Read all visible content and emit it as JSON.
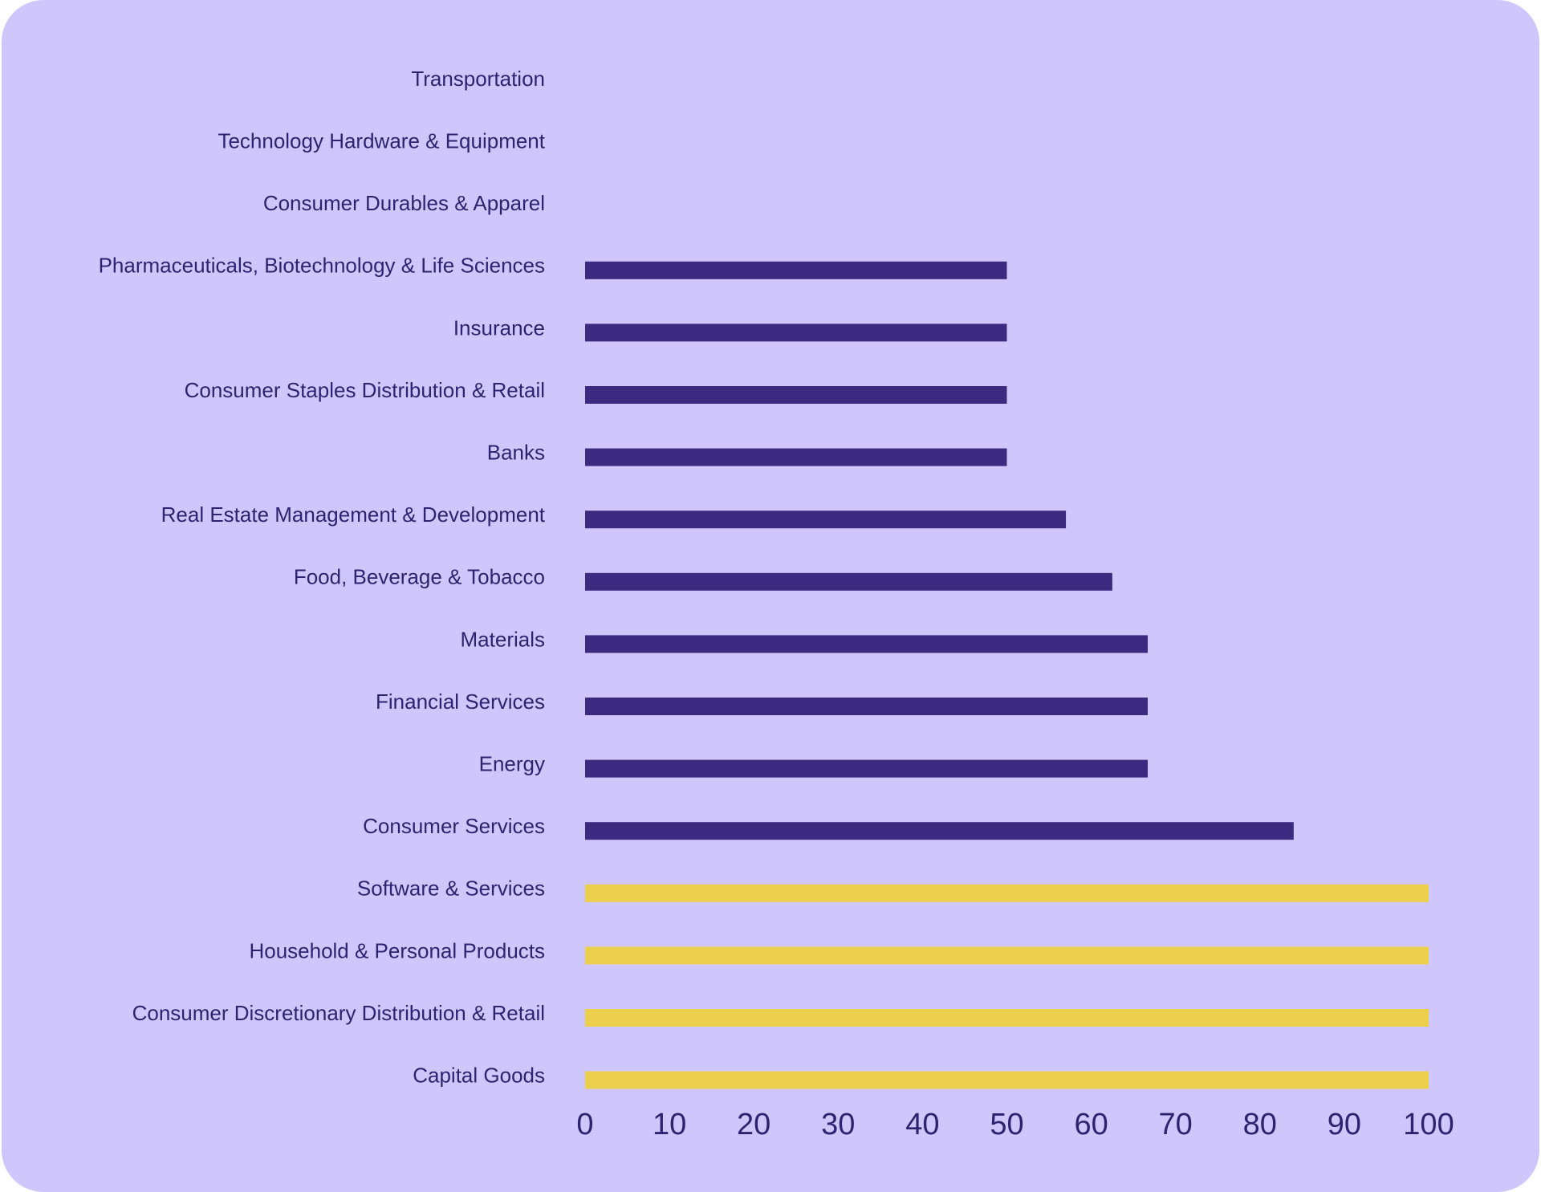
{
  "colors": {
    "background": "#cfc7fc",
    "text": "#2e2370",
    "bar_default": "#3b2a80",
    "bar_highlight": "#ecd04c"
  },
  "chart_data": {
    "type": "bar",
    "orientation": "horizontal",
    "title": "",
    "xlabel": "",
    "ylabel": "",
    "xlim": [
      0,
      100
    ],
    "xticks": [
      0,
      10,
      20,
      30,
      40,
      50,
      60,
      70,
      80,
      90,
      100
    ],
    "grid": false,
    "categories": [
      "Transportation",
      "Technology Hardware & Equipment",
      "Consumer Durables & Apparel",
      "Pharmaceuticals, Biotechnology & Life Sciences",
      "Insurance",
      "Consumer Staples Distribution & Retail",
      "Banks",
      "Real Estate Management & Development",
      "Food, Beverage & Tobacco",
      "Materials",
      "Financial Services",
      "Energy",
      "Consumer Services",
      "Software & Services",
      "Household & Personal Products",
      "Consumer Discretionary Distribution & Retail",
      "Capital Goods"
    ],
    "values": [
      0,
      0,
      0,
      50,
      50,
      50,
      50,
      57,
      62.5,
      66.7,
      66.7,
      66.7,
      84,
      100,
      100,
      100,
      100
    ],
    "highlighted": [
      false,
      false,
      false,
      false,
      false,
      false,
      false,
      false,
      false,
      false,
      false,
      false,
      false,
      true,
      true,
      true,
      true
    ]
  }
}
